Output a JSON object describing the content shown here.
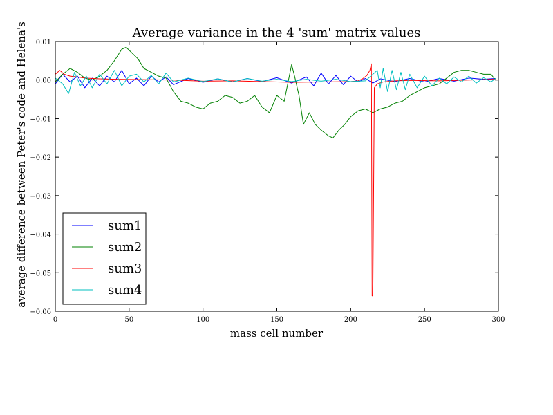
{
  "chart_data": {
    "type": "line",
    "title": "Average variance in the 4 'sum' matrix values",
    "xlabel": "mass cell number",
    "ylabel": "average difference between Peter's code and Helena's",
    "xlim": [
      0,
      300
    ],
    "ylim": [
      -0.06,
      0.01
    ],
    "xticks": [
      0,
      50,
      100,
      150,
      200,
      250,
      300
    ],
    "xtick_labels": [
      "0",
      "50",
      "100",
      "150",
      "200",
      "250",
      "300"
    ],
    "yticks": [
      0.01,
      0.0,
      -0.01,
      -0.02,
      -0.03,
      -0.04,
      -0.05,
      -0.06
    ],
    "ytick_labels": [
      "0.01",
      "0.00",
      "−0.01",
      "−0.02",
      "−0.03",
      "−0.04",
      "−0.05",
      "−0.06"
    ],
    "grid": false,
    "legend_position": "lower-left",
    "series": [
      {
        "name": "sum1",
        "color": "#0000ff",
        "points": [
          [
            0,
            -0.001
          ],
          [
            5,
            0.0015
          ],
          [
            10,
            -0.0005
          ],
          [
            15,
            0.001
          ],
          [
            20,
            -0.002
          ],
          [
            25,
            0.0005
          ],
          [
            30,
            -0.0015
          ],
          [
            35,
            0.001
          ],
          [
            40,
            -0.0005
          ],
          [
            45,
            0.0025
          ],
          [
            50,
            -0.001
          ],
          [
            55,
            0.0005
          ],
          [
            60,
            -0.0015
          ],
          [
            65,
            0.001
          ],
          [
            70,
            -0.0005
          ],
          [
            75,
            0.0008
          ],
          [
            80,
            -0.0012
          ],
          [
            90,
            0.0004
          ],
          [
            100,
            -0.0006
          ],
          [
            110,
            0.0003
          ],
          [
            120,
            -0.0005
          ],
          [
            130,
            0.0004
          ],
          [
            140,
            -0.0004
          ],
          [
            150,
            0.0006
          ],
          [
            160,
            -0.0008
          ],
          [
            170,
            0.0008
          ],
          [
            175,
            -0.0015
          ],
          [
            180,
            0.0018
          ],
          [
            185,
            -0.001
          ],
          [
            190,
            0.0012
          ],
          [
            195,
            -0.0012
          ],
          [
            200,
            0.001
          ],
          [
            205,
            -0.0005
          ],
          [
            210,
            0.0004
          ],
          [
            215,
            -0.0008
          ],
          [
            220,
            0.0003
          ],
          [
            230,
            -0.0004
          ],
          [
            240,
            0.0004
          ],
          [
            250,
            -0.0005
          ],
          [
            260,
            0.0004
          ],
          [
            270,
            -0.0003
          ],
          [
            280,
            0.0005
          ],
          [
            290,
            0.0002
          ],
          [
            298,
            0.0004
          ]
        ]
      },
      {
        "name": "sum2",
        "color": "#008000",
        "points": [
          [
            0,
            -0.0005
          ],
          [
            5,
            0.0015
          ],
          [
            10,
            0.003
          ],
          [
            15,
            0.002
          ],
          [
            20,
            0.0005
          ],
          [
            25,
            0.0
          ],
          [
            30,
            0.001
          ],
          [
            35,
            0.0025
          ],
          [
            40,
            0.005
          ],
          [
            45,
            0.008
          ],
          [
            48,
            0.0085
          ],
          [
            52,
            0.007
          ],
          [
            56,
            0.0055
          ],
          [
            60,
            0.003
          ],
          [
            65,
            0.002
          ],
          [
            70,
            0.001
          ],
          [
            75,
            0.0005
          ],
          [
            80,
            -0.003
          ],
          [
            85,
            -0.0055
          ],
          [
            90,
            -0.006
          ],
          [
            95,
            -0.007
          ],
          [
            100,
            -0.0075
          ],
          [
            105,
            -0.006
          ],
          [
            110,
            -0.0055
          ],
          [
            115,
            -0.004
          ],
          [
            120,
            -0.0045
          ],
          [
            125,
            -0.006
          ],
          [
            130,
            -0.0055
          ],
          [
            135,
            -0.004
          ],
          [
            140,
            -0.007
          ],
          [
            145,
            -0.0085
          ],
          [
            150,
            -0.004
          ],
          [
            155,
            -0.0055
          ],
          [
            160,
            0.004
          ],
          [
            162,
            0.001
          ],
          [
            165,
            -0.004
          ],
          [
            168,
            -0.0115
          ],
          [
            172,
            -0.0085
          ],
          [
            176,
            -0.0115
          ],
          [
            180,
            -0.013
          ],
          [
            185,
            -0.0145
          ],
          [
            188,
            -0.015
          ],
          [
            192,
            -0.013
          ],
          [
            196,
            -0.0115
          ],
          [
            200,
            -0.0095
          ],
          [
            205,
            -0.008
          ],
          [
            210,
            -0.0075
          ],
          [
            215,
            -0.0085
          ],
          [
            220,
            -0.0075
          ],
          [
            225,
            -0.007
          ],
          [
            230,
            -0.006
          ],
          [
            235,
            -0.0055
          ],
          [
            240,
            -0.004
          ],
          [
            245,
            -0.003
          ],
          [
            250,
            -0.002
          ],
          [
            255,
            -0.0015
          ],
          [
            260,
            -0.001
          ],
          [
            265,
            0.0005
          ],
          [
            270,
            0.002
          ],
          [
            275,
            0.0025
          ],
          [
            280,
            0.0025
          ],
          [
            285,
            0.002
          ],
          [
            290,
            0.0015
          ],
          [
            295,
            0.0015
          ],
          [
            298,
            0.0
          ]
        ]
      },
      {
        "name": "sum3",
        "color": "#ff0000",
        "points": [
          [
            0,
            0.0015
          ],
          [
            3,
            0.0025
          ],
          [
            6,
            0.0015
          ],
          [
            10,
            0.001
          ],
          [
            15,
            0.0008
          ],
          [
            20,
            0.0005
          ],
          [
            30,
            0.0003
          ],
          [
            40,
            0.0002
          ],
          [
            60,
            0.0001
          ],
          [
            80,
            0.0
          ],
          [
            100,
            -0.0003
          ],
          [
            120,
            -0.0002
          ],
          [
            140,
            -0.0004
          ],
          [
            160,
            -0.0006
          ],
          [
            180,
            -0.0005
          ],
          [
            200,
            -0.0004
          ],
          [
            205,
            -0.0002
          ],
          [
            208,
            0.0003
          ],
          [
            211,
            0.0012
          ],
          [
            213,
            0.0025
          ],
          [
            214,
            0.0042
          ],
          [
            214.5,
            -0.056
          ],
          [
            215,
            -0.056
          ],
          [
            216,
            -0.002
          ],
          [
            218,
            -0.001
          ],
          [
            222,
            -0.0005
          ],
          [
            230,
            -0.0002
          ],
          [
            240,
            -0.0001
          ],
          [
            260,
            -0.0002
          ],
          [
            280,
            0.0
          ],
          [
            298,
            0.0002
          ]
        ]
      },
      {
        "name": "sum4",
        "color": "#00bfbf",
        "points": [
          [
            0,
            0.0005
          ],
          [
            5,
            -0.001
          ],
          [
            9,
            -0.0035
          ],
          [
            13,
            0.002
          ],
          [
            17,
            -0.0015
          ],
          [
            21,
            0.001
          ],
          [
            25,
            -0.002
          ],
          [
            30,
            0.0015
          ],
          [
            35,
            -0.001
          ],
          [
            40,
            0.0025
          ],
          [
            45,
            -0.0015
          ],
          [
            50,
            0.001
          ],
          [
            55,
            0.0015
          ],
          [
            60,
            -0.0005
          ],
          [
            65,
            0.0012
          ],
          [
            70,
            -0.001
          ],
          [
            75,
            0.0018
          ],
          [
            80,
            -0.0005
          ],
          [
            90,
            0.0005
          ],
          [
            100,
            -0.0004
          ],
          [
            110,
            0.0003
          ],
          [
            120,
            -0.0005
          ],
          [
            130,
            0.0004
          ],
          [
            140,
            -0.0003
          ],
          [
            150,
            0.0002
          ],
          [
            160,
            -0.0004
          ],
          [
            170,
            0.0002
          ],
          [
            180,
            -0.0003
          ],
          [
            190,
            0.0002
          ],
          [
            200,
            -0.0004
          ],
          [
            210,
            -0.0002
          ],
          [
            218,
            0.0025
          ],
          [
            220,
            -0.002
          ],
          [
            222,
            0.003
          ],
          [
            225,
            -0.003
          ],
          [
            228,
            0.0025
          ],
          [
            231,
            -0.0025
          ],
          [
            234,
            0.002
          ],
          [
            237,
            -0.0025
          ],
          [
            240,
            0.0015
          ],
          [
            245,
            -0.002
          ],
          [
            250,
            0.001
          ],
          [
            255,
            -0.0015
          ],
          [
            260,
            0.0005
          ],
          [
            265,
            -0.001
          ],
          [
            270,
            0.0008
          ],
          [
            275,
            -0.0005
          ],
          [
            280,
            0.001
          ],
          [
            285,
            -0.0008
          ],
          [
            290,
            0.0006
          ],
          [
            295,
            -0.0005
          ],
          [
            298,
            0.0004
          ]
        ]
      }
    ]
  }
}
